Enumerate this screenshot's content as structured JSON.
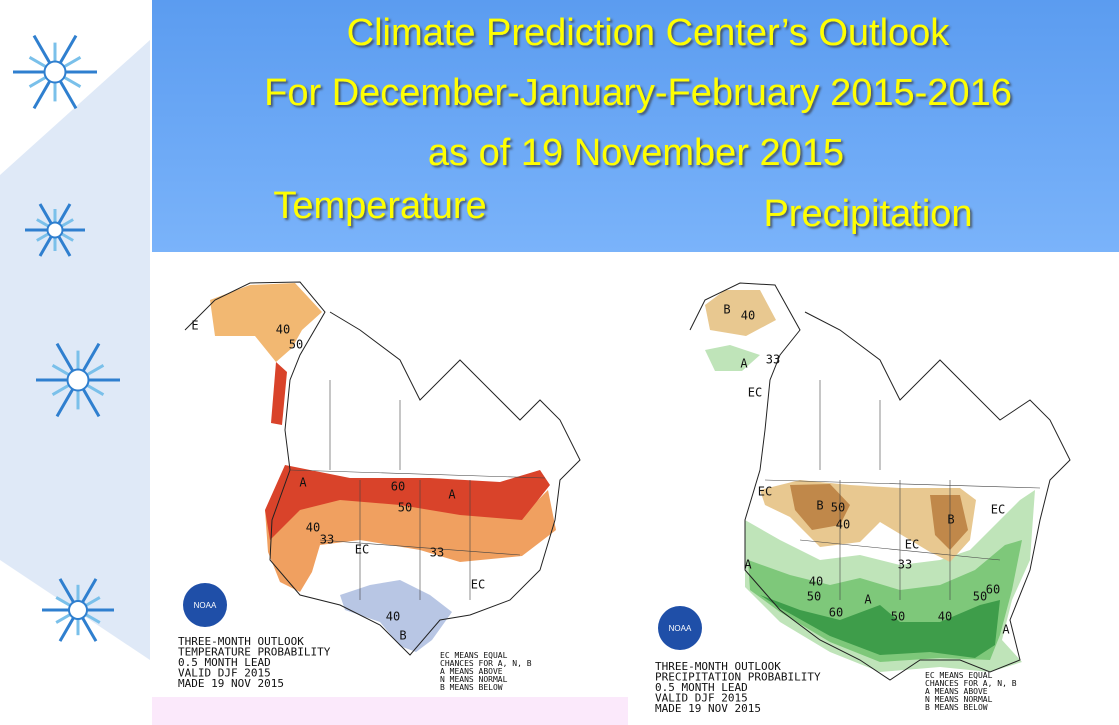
{
  "header": {
    "title_lines": [
      "Climate Prediction Center’s Outlook",
      "For December-January-February 2015-2016",
      "as of 19 November 2015"
    ],
    "panels": [
      "Temperature",
      "Precipitation"
    ]
  },
  "maps": [
    {
      "logo": "NOAA",
      "labels": [
        "E",
        "40",
        "50",
        "A",
        "60",
        "50",
        "A",
        "40",
        "33",
        "EC",
        "33",
        "EC",
        "40",
        "B"
      ],
      "footer": [
        "THREE-MONTH OUTLOOK",
        "TEMPERATURE PROBABILITY",
        "0.5 MONTH LEAD",
        "VALID DJF 2015",
        "MADE 19 NOV 2015"
      ],
      "legend": [
        "EC MEANS EQUAL",
        "CHANCES FOR A, N, B",
        "A MEANS ABOVE",
        "N MEANS NORMAL",
        "B MEANS BELOW"
      ]
    },
    {
      "logo": "NOAA",
      "labels": [
        "B",
        "40",
        "33",
        "A",
        "EC",
        "EC",
        "B",
        "50",
        "40",
        "B",
        "EC",
        "EC",
        "A",
        "40",
        "50",
        "60",
        "A",
        "50",
        "40",
        "50",
        "60",
        "A",
        "33"
      ],
      "footer": [
        "THREE-MONTH OUTLOOK",
        "PRECIPITATION PROBABILITY",
        "0.5 MONTH LEAD",
        "VALID DJF 2015",
        "MADE 19 NOV 2015"
      ],
      "legend": [
        "EC MEANS EQUAL",
        "CHANCES FOR A, N, B",
        "A MEANS ABOVE",
        "N MEANS NORMAL",
        "B MEANS BELOW"
      ]
    }
  ]
}
